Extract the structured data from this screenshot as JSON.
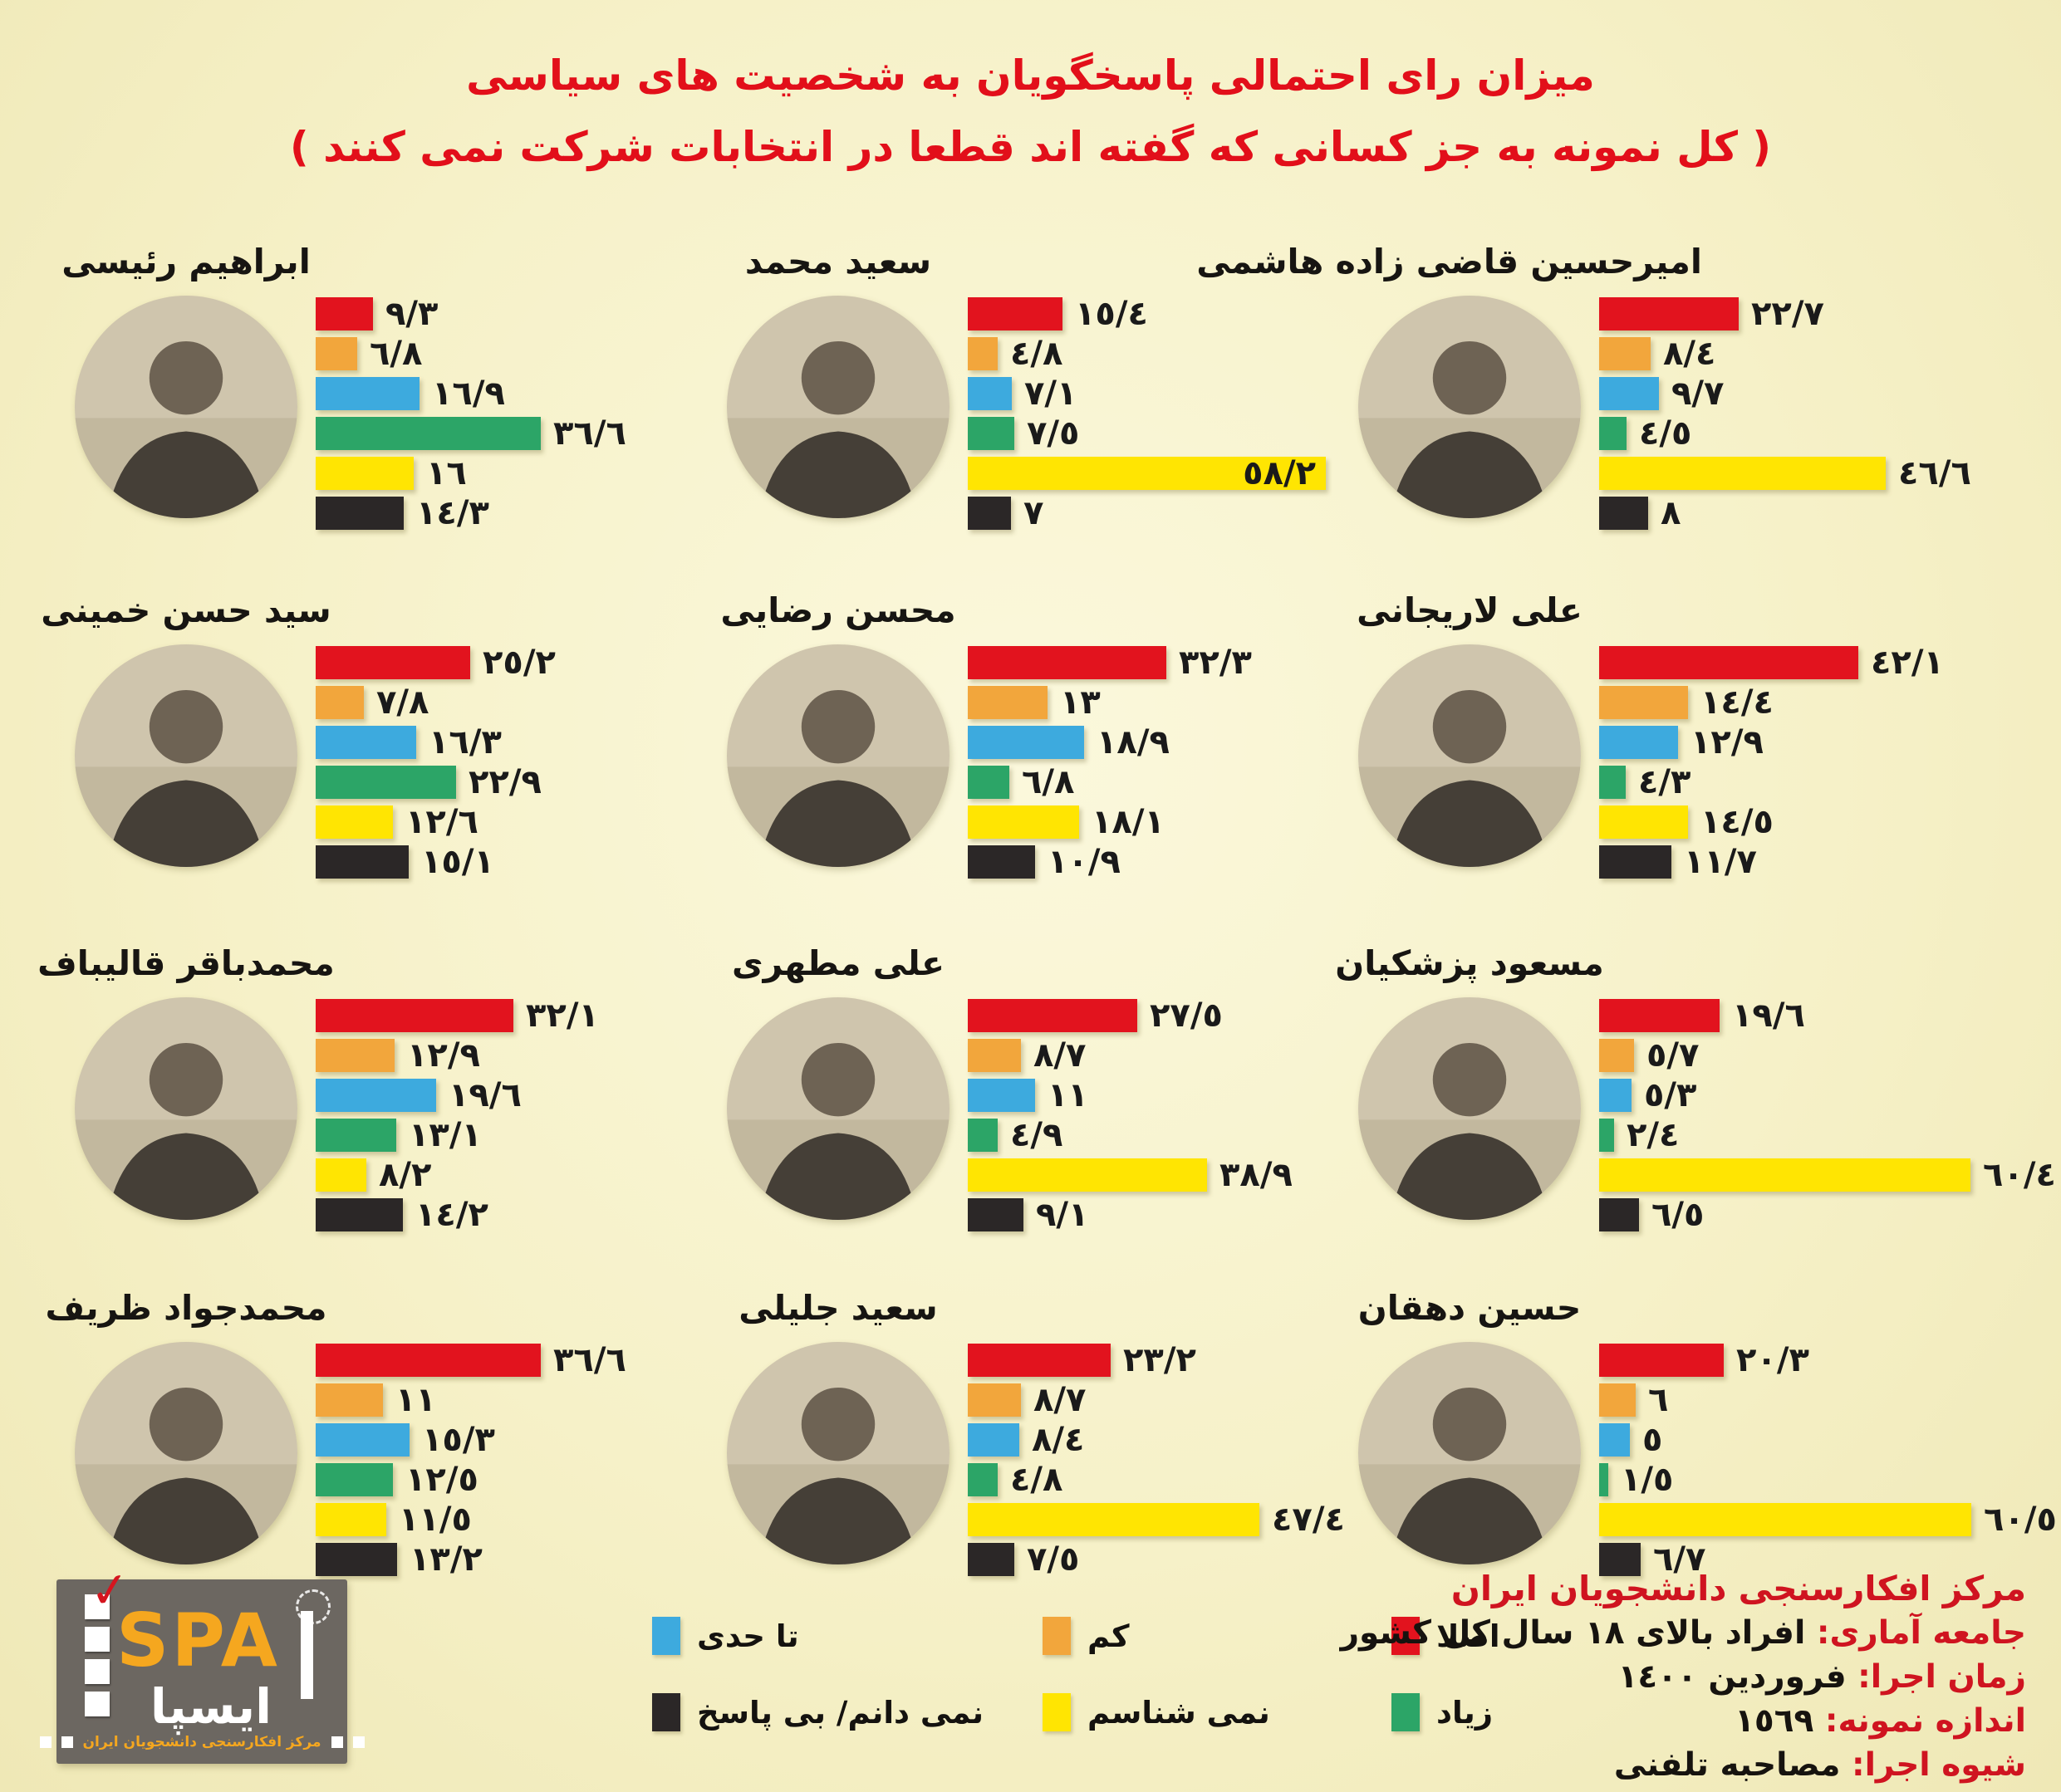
{
  "title": {
    "line1": "میزان رای احتمالی پاسخگویان به شخصیت های سیاسی",
    "line2": "( کل نمونه به جز کسانی که گفته اند قطعا در انتخابات شرکت نمی کنند )"
  },
  "colors": {
    "title_red": "#e20f1a",
    "background": "#f6f1c8",
    "bar_red": "#e2131e",
    "bar_orange": "#f2a63c",
    "bar_blue": "#3daade",
    "bar_green": "#2ca567",
    "bar_yellow": "#ffe502",
    "bar_black": "#2b2727",
    "logo_grey": "#6c6761",
    "logo_orange": "#f5a71f"
  },
  "legend": {
    "items": [
      {
        "key": "not-at-all",
        "label": "اصلا",
        "color": "#e2131e"
      },
      {
        "key": "little",
        "label": "کم",
        "color": "#f2a63c"
      },
      {
        "key": "somewhat",
        "label": "تا حدی",
        "color": "#3daade"
      },
      {
        "key": "a-lot",
        "label": "زیاد",
        "color": "#2ca567"
      },
      {
        "key": "dont-know-him",
        "label": "نمی شناسم",
        "color": "#ffe502"
      },
      {
        "key": "dont-know-no-answer",
        "label": "نمی دانم/ بی پاسخ",
        "color": "#2b2727"
      }
    ]
  },
  "chart_data": {
    "type": "bar",
    "orientation": "horizontal",
    "unit": "percent",
    "xlim": [
      0,
      62
    ],
    "grid": false,
    "categories": [
      "اصلا",
      "کم",
      "تا حدی",
      "زیاد",
      "نمی شناسم",
      "نمی دانم/ بی پاسخ"
    ],
    "category_keys": [
      "not-at-all",
      "little",
      "somewhat",
      "a-lot",
      "dont-know-him",
      "dont-know-no-answer"
    ],
    "category_colors": [
      "#e2131e",
      "#f2a63c",
      "#3daade",
      "#2ca567",
      "#ffe502",
      "#2b2727"
    ],
    "series": [
      {
        "name": "ابراهیم رئیسی",
        "values": [
          9.3,
          6.8,
          16.9,
          36.6,
          16,
          14.3
        ],
        "labels": [
          "٩/٣",
          "٦/٨",
          "١٦/٩",
          "٣٦/٦",
          "١٦",
          "١٤/٣"
        ]
      },
      {
        "name": "سعید محمد",
        "values": [
          15.4,
          4.8,
          7.1,
          7.5,
          58.2,
          7
        ],
        "labels": [
          "١٥/٤",
          "٤/٨",
          "٧/١",
          "٧/٥",
          "٥٨/٢",
          "٧"
        ],
        "inside": [
          4
        ]
      },
      {
        "name": "امیرحسین قاضی زاده هاشمی",
        "values": [
          22.7,
          8.4,
          9.7,
          4.5,
          46.6,
          8
        ],
        "labels": [
          "٢٢/٧",
          "٨/٤",
          "٩/٧",
          "٤/٥",
          "٤٦/٦",
          "٨"
        ]
      },
      {
        "name": "سید حسن خمینی",
        "values": [
          25.2,
          7.8,
          16.3,
          22.9,
          12.6,
          15.1
        ],
        "labels": [
          "٢٥/٢",
          "٧/٨",
          "١٦/٣",
          "٢٢/٩",
          "١٢/٦",
          "١٥/١"
        ]
      },
      {
        "name": "محسن رضایی",
        "values": [
          32.3,
          13,
          18.9,
          6.8,
          18.1,
          10.9
        ],
        "labels": [
          "٣٢/٣",
          "١٣",
          "١٨/٩",
          "٦/٨",
          "١٨/١",
          "١٠/٩"
        ]
      },
      {
        "name": "علی لاریجانی",
        "values": [
          42.1,
          14.4,
          12.9,
          4.3,
          14.5,
          11.7
        ],
        "labels": [
          "٤٢/١",
          "١٤/٤",
          "١٢/٩",
          "٤/٣",
          "١٤/٥",
          "١١/٧"
        ]
      },
      {
        "name": "محمدباقر قالیباف",
        "values": [
          32.1,
          12.9,
          19.6,
          13.1,
          8.2,
          14.2
        ],
        "labels": [
          "٣٢/١",
          "١٢/٩",
          "١٩/٦",
          "١٣/١",
          "٨/٢",
          "١٤/٢"
        ]
      },
      {
        "name": "علی مطهری",
        "values": [
          27.5,
          8.7,
          11,
          4.9,
          38.9,
          9.1
        ],
        "labels": [
          "٢٧/٥",
          "٨/٧",
          "١١",
          "٤/٩",
          "٣٨/٩",
          "٩/١"
        ]
      },
      {
        "name": "مسعود پزشکیان",
        "values": [
          19.6,
          5.7,
          5.3,
          2.4,
          60.4,
          6.5
        ],
        "labels": [
          "١٩/٦",
          "٥/٧",
          "٥/٣",
          "٢/٤",
          "٦٠/٤",
          "٦/٥"
        ]
      },
      {
        "name": "محمدجواد ظریف",
        "values": [
          36.6,
          11,
          15.3,
          12.5,
          11.5,
          13.2
        ],
        "labels": [
          "٣٦/٦",
          "١١",
          "١٥/٣",
          "١٢/٥",
          "١١/٥",
          "١٣/٢"
        ]
      },
      {
        "name": "سعید جلیلی",
        "values": [
          23.2,
          8.7,
          8.4,
          4.8,
          47.4,
          7.5
        ],
        "labels": [
          "٢٣/٢",
          "٨/٧",
          "٨/٤",
          "٤/٨",
          "٤٧/٤",
          "٧/٥"
        ]
      },
      {
        "name": "حسین دهقان",
        "values": [
          20.3,
          6,
          5,
          1.5,
          60.5,
          6.7
        ],
        "labels": [
          "٢٠/٣",
          "٦",
          "٥",
          "١/٥",
          "٦٠/٥",
          "٦/٧"
        ]
      }
    ]
  },
  "footer": {
    "org_line": "مرکز افکارسنجی دانشجویان ایران",
    "rows": [
      {
        "label": "جامعه آماری:",
        "value": "افراد بالای ١٨ سال کل کشور"
      },
      {
        "label": "زمان اجرا:",
        "value": "فروردین ١٤٠٠"
      },
      {
        "label": "اندازه نمونه:",
        "value": "١٥٦٩"
      },
      {
        "label": "شیوه اجرا:",
        "value": "مصاحبه تلفنی"
      }
    ]
  },
  "logo": {
    "latin": "SPA",
    "persian": "ایسپا",
    "caption": "مرکز افکارسنجی دانشجویان ایران",
    "check_glyph": "✓"
  }
}
